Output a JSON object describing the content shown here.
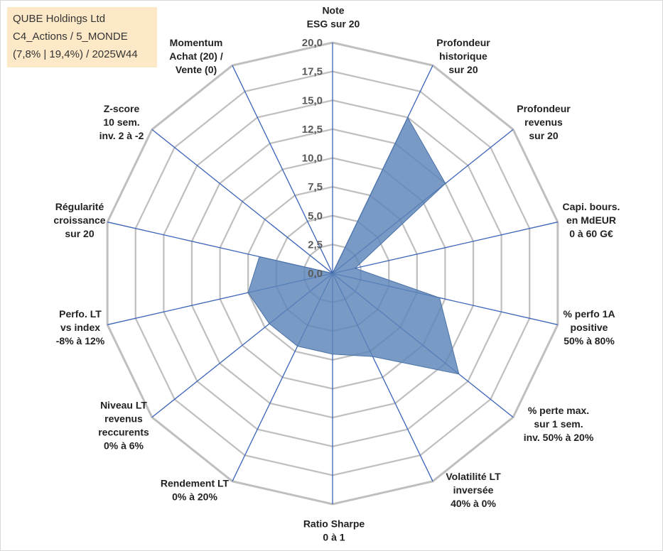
{
  "info_box": {
    "line1": "QUBE Holdings Ltd",
    "line2": "C4_Actions / 5_MONDE",
    "line3": "(7,8% | 19,4%) / 2025W44"
  },
  "chart_data": {
    "type": "radar",
    "title": "",
    "rmin": 0,
    "rmax": 20,
    "tick_values": [
      0,
      2.5,
      5,
      7.5,
      10,
      12.5,
      15,
      17.5,
      20
    ],
    "tick_labels": [
      "0,0",
      "2,5",
      "5,0",
      "7,5",
      "10,0",
      "12,5",
      "15,0",
      "17,5",
      "20,0"
    ],
    "grid": true,
    "axes": [
      {
        "label": [
          "Note",
          "ESG sur 20"
        ]
      },
      {
        "label": [
          "Profondeur",
          "historique",
          "sur 20"
        ]
      },
      {
        "label": [
          "Profondeur",
          "revenus",
          "sur 20"
        ]
      },
      {
        "label": [
          "Capi. bours.",
          "en MdEUR",
          "0 à 60 G€"
        ]
      },
      {
        "label": [
          "% perfo 1A",
          "positive",
          "50% à 80%"
        ]
      },
      {
        "label": [
          "% perte max.",
          "sur 1 sem.",
          "inv. 50% à 20%"
        ]
      },
      {
        "label": [
          "Volatilité LT",
          "inversée",
          "40% à 0%"
        ]
      },
      {
        "label": [
          "Ratio Sharpe",
          "0 à 1"
        ]
      },
      {
        "label": [
          "Rendement LT",
          "0% à 20%"
        ]
      },
      {
        "label": [
          "Niveau LT",
          "revenus",
          "reccurents",
          "0% à 6%"
        ]
      },
      {
        "label": [
          "Perfo. LT",
          "vs index",
          "-8% à 12%"
        ]
      },
      {
        "label": [
          "Régularité",
          "croissance",
          "sur 20"
        ]
      },
      {
        "label": [
          "Z-score",
          "10 sem.",
          "inv. 2 à -2"
        ]
      },
      {
        "label": [
          "Momentum",
          "Achat (20) /",
          "Vente (0)"
        ]
      }
    ],
    "series": [
      {
        "values": [
          0,
          15,
          12.5,
          2,
          9.5,
          14,
          8,
          7,
          7,
          7,
          7.5,
          6.5,
          0,
          0
        ],
        "color": "#5b84b8"
      }
    ],
    "colors": {
      "grid": "#bfbfbf",
      "spoke": "#3a63b8",
      "fill": "#5b84b8",
      "info_bg": "#fde9c8"
    }
  }
}
